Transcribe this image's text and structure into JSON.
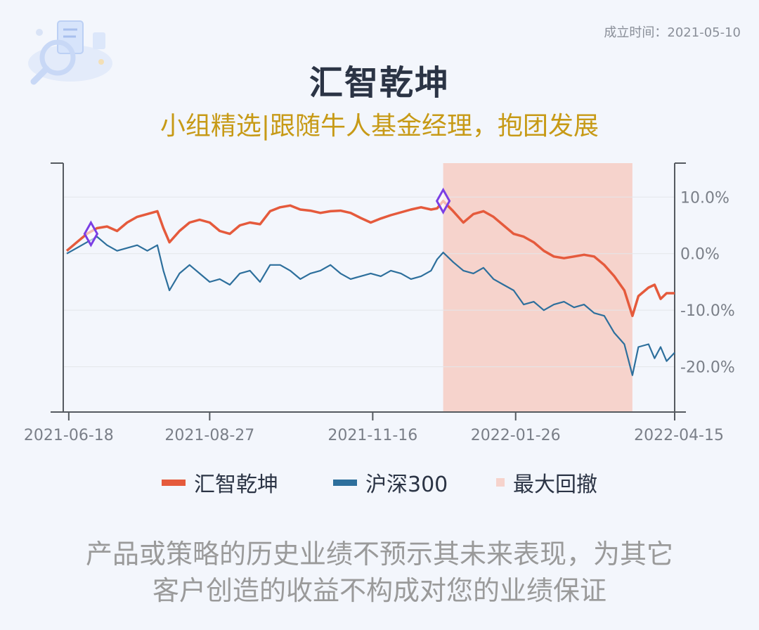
{
  "header": {
    "date_stamp": "成立时间：2021-05-10",
    "title": "汇智乾坤",
    "subtitle": "小组精选|跟随牛人基金经理，抱团发展"
  },
  "colors": {
    "fund": "#e55a3c",
    "index": "#2d6f9c",
    "drawdown": "#f6d3cc",
    "marker": "#7b3fe4",
    "title": "#2b3445",
    "subtitle": "#c79a16"
  },
  "icons": {
    "logo": "magnifier-document-icon",
    "marker": "diamond-marker-icon"
  },
  "legend": {
    "fund": "汇智乾坤",
    "index": "沪深300",
    "drawdown": "最大回撤"
  },
  "disclaimer": {
    "line1": "产品或策略的历史业绩不预示其未来表现，为其它",
    "line2": "客户创造的收益不构成对您的业绩保证"
  },
  "chart_data": {
    "type": "line",
    "xlabel": "",
    "ylabel": "",
    "x_range": [
      "2021-06-17",
      "2022-04-15"
    ],
    "x_ticks": [
      "2021-06-18",
      "2021-08-27",
      "2021-11-16",
      "2022-01-26",
      "2022-04-15"
    ],
    "ylim": [
      -28,
      16
    ],
    "y_ticks": [
      10,
      0,
      -10,
      -20
    ],
    "y_tick_labels": [
      "10.0%",
      "0.0%",
      "-10.0%",
      "-20.0%"
    ],
    "y_axis_side": "right",
    "grid": true,
    "legend_position": "bottom",
    "series": [
      {
        "name": "汇智乾坤",
        "points": [
          [
            "2021-06-17",
            0.5
          ],
          [
            "2021-06-22",
            2.0
          ],
          [
            "2021-06-27",
            3.5
          ],
          [
            "2021-07-02",
            4.5
          ],
          [
            "2021-07-07",
            4.8
          ],
          [
            "2021-07-12",
            4.0
          ],
          [
            "2021-07-17",
            5.5
          ],
          [
            "2021-07-22",
            6.5
          ],
          [
            "2021-07-27",
            7.0
          ],
          [
            "2021-08-01",
            7.5
          ],
          [
            "2021-08-04",
            4.5
          ],
          [
            "2021-08-07",
            2.0
          ],
          [
            "2021-08-12",
            4.0
          ],
          [
            "2021-08-17",
            5.5
          ],
          [
            "2021-08-22",
            6.0
          ],
          [
            "2021-08-27",
            5.5
          ],
          [
            "2021-09-01",
            4.0
          ],
          [
            "2021-09-06",
            3.5
          ],
          [
            "2021-09-11",
            5.0
          ],
          [
            "2021-09-16",
            5.5
          ],
          [
            "2021-09-21",
            5.2
          ],
          [
            "2021-09-26",
            7.5
          ],
          [
            "2021-10-01",
            8.2
          ],
          [
            "2021-10-06",
            8.5
          ],
          [
            "2021-10-11",
            7.8
          ],
          [
            "2021-10-16",
            7.6
          ],
          [
            "2021-10-21",
            7.2
          ],
          [
            "2021-10-26",
            7.5
          ],
          [
            "2021-10-31",
            7.6
          ],
          [
            "2021-11-05",
            7.2
          ],
          [
            "2021-11-10",
            6.3
          ],
          [
            "2021-11-15",
            5.5
          ],
          [
            "2021-11-20",
            6.2
          ],
          [
            "2021-11-25",
            6.8
          ],
          [
            "2021-11-30",
            7.3
          ],
          [
            "2021-12-05",
            7.8
          ],
          [
            "2021-12-10",
            8.2
          ],
          [
            "2021-12-15",
            7.8
          ],
          [
            "2021-12-18",
            8.0
          ],
          [
            "2021-12-21",
            9.3
          ],
          [
            "2021-12-26",
            7.5
          ],
          [
            "2021-12-31",
            5.5
          ],
          [
            "2022-01-05",
            7.0
          ],
          [
            "2022-01-10",
            7.5
          ],
          [
            "2022-01-15",
            6.5
          ],
          [
            "2022-01-20",
            5.0
          ],
          [
            "2022-01-25",
            3.5
          ],
          [
            "2022-01-30",
            3.0
          ],
          [
            "2022-02-04",
            2.0
          ],
          [
            "2022-02-09",
            0.5
          ],
          [
            "2022-02-14",
            -0.5
          ],
          [
            "2022-02-19",
            -0.8
          ],
          [
            "2022-02-24",
            -0.5
          ],
          [
            "2022-03-01",
            -0.2
          ],
          [
            "2022-03-06",
            -0.5
          ],
          [
            "2022-03-11",
            -2.0
          ],
          [
            "2022-03-16",
            -4.0
          ],
          [
            "2022-03-21",
            -6.5
          ],
          [
            "2022-03-25",
            -11.0
          ],
          [
            "2022-03-28",
            -7.5
          ],
          [
            "2022-04-02",
            -6.0
          ],
          [
            "2022-04-05",
            -5.5
          ],
          [
            "2022-04-08",
            -8.0
          ],
          [
            "2022-04-11",
            -7.0
          ],
          [
            "2022-04-15",
            -7.0
          ]
        ]
      },
      {
        "name": "沪深300",
        "points": [
          [
            "2021-06-17",
            0.0
          ],
          [
            "2021-06-22",
            1.0
          ],
          [
            "2021-06-27",
            2.0
          ],
          [
            "2021-07-02",
            3.0
          ],
          [
            "2021-07-07",
            1.5
          ],
          [
            "2021-07-12",
            0.5
          ],
          [
            "2021-07-17",
            1.0
          ],
          [
            "2021-07-22",
            1.5
          ],
          [
            "2021-07-27",
            0.5
          ],
          [
            "2021-08-01",
            1.5
          ],
          [
            "2021-08-04",
            -3.0
          ],
          [
            "2021-08-07",
            -6.5
          ],
          [
            "2021-08-12",
            -3.5
          ],
          [
            "2021-08-17",
            -2.0
          ],
          [
            "2021-08-22",
            -3.5
          ],
          [
            "2021-08-27",
            -5.0
          ],
          [
            "2021-09-01",
            -4.5
          ],
          [
            "2021-09-06",
            -5.5
          ],
          [
            "2021-09-11",
            -3.5
          ],
          [
            "2021-09-16",
            -3.0
          ],
          [
            "2021-09-21",
            -5.0
          ],
          [
            "2021-09-26",
            -2.0
          ],
          [
            "2021-10-01",
            -2.0
          ],
          [
            "2021-10-06",
            -3.0
          ],
          [
            "2021-10-11",
            -4.5
          ],
          [
            "2021-10-16",
            -3.5
          ],
          [
            "2021-10-21",
            -3.0
          ],
          [
            "2021-10-26",
            -2.0
          ],
          [
            "2021-10-31",
            -3.5
          ],
          [
            "2021-11-05",
            -4.5
          ],
          [
            "2021-11-10",
            -4.0
          ],
          [
            "2021-11-15",
            -3.5
          ],
          [
            "2021-11-20",
            -4.0
          ],
          [
            "2021-11-25",
            -3.0
          ],
          [
            "2021-11-30",
            -3.5
          ],
          [
            "2021-12-05",
            -4.5
          ],
          [
            "2021-12-10",
            -4.0
          ],
          [
            "2021-12-15",
            -3.0
          ],
          [
            "2021-12-18",
            -1.0
          ],
          [
            "2021-12-21",
            0.2
          ],
          [
            "2021-12-26",
            -1.5
          ],
          [
            "2021-12-31",
            -3.0
          ],
          [
            "2022-01-05",
            -3.5
          ],
          [
            "2022-01-10",
            -2.5
          ],
          [
            "2022-01-15",
            -4.5
          ],
          [
            "2022-01-20",
            -5.5
          ],
          [
            "2022-01-25",
            -6.5
          ],
          [
            "2022-01-30",
            -9.0
          ],
          [
            "2022-02-04",
            -8.5
          ],
          [
            "2022-02-09",
            -10.0
          ],
          [
            "2022-02-14",
            -9.0
          ],
          [
            "2022-02-19",
            -8.5
          ],
          [
            "2022-02-24",
            -9.5
          ],
          [
            "2022-03-01",
            -9.0
          ],
          [
            "2022-03-06",
            -10.5
          ],
          [
            "2022-03-11",
            -11.0
          ],
          [
            "2022-03-16",
            -14.0
          ],
          [
            "2022-03-21",
            -16.0
          ],
          [
            "2022-03-25",
            -21.5
          ],
          [
            "2022-03-28",
            -16.5
          ],
          [
            "2022-04-02",
            -16.0
          ],
          [
            "2022-04-05",
            -18.5
          ],
          [
            "2022-04-08",
            -16.5
          ],
          [
            "2022-04-11",
            -19.0
          ],
          [
            "2022-04-15",
            -17.5
          ]
        ]
      }
    ],
    "max_drawdown": {
      "start": "2021-12-21",
      "end": "2022-03-25"
    },
    "markers": [
      {
        "date": "2021-06-29",
        "value": 3.5
      },
      {
        "date": "2021-12-21",
        "value": 9.3
      }
    ]
  }
}
